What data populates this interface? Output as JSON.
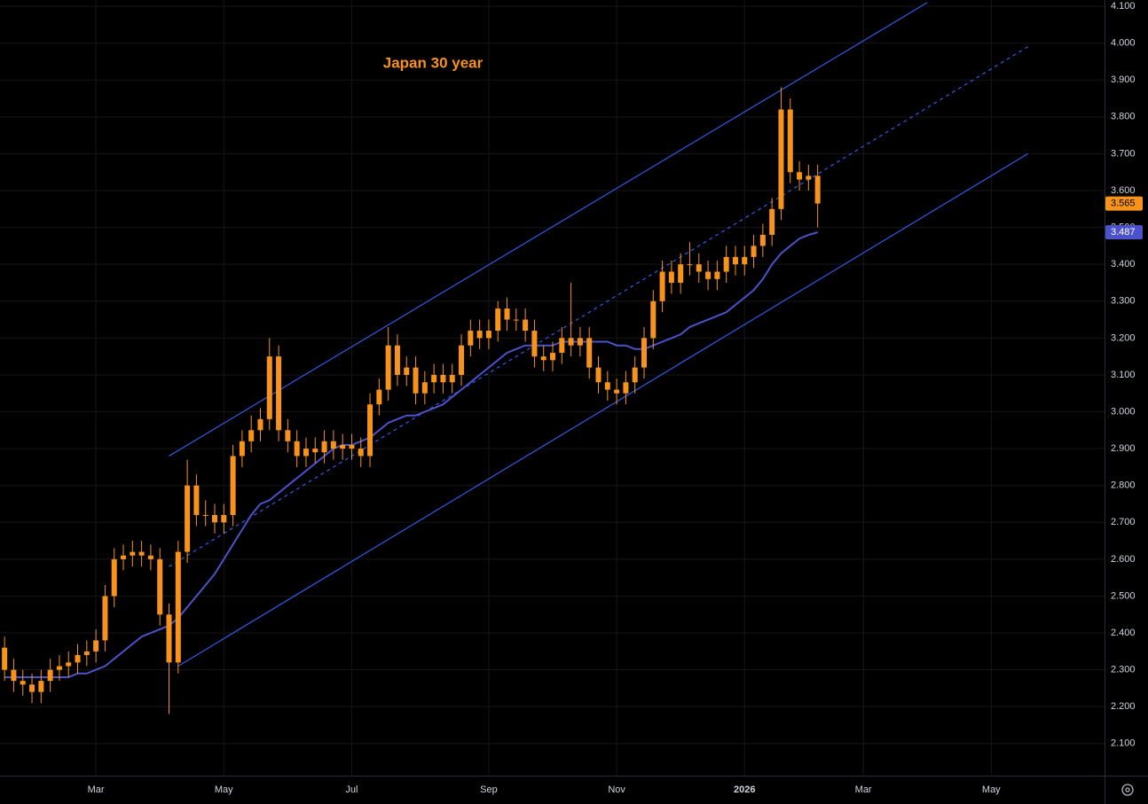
{
  "chart_data": {
    "type": "candlestick",
    "title": "Japan 30 year",
    "color": "#f7931a",
    "open": [
      2.36,
      2.3,
      2.27,
      2.26,
      2.24,
      2.27,
      2.3,
      2.31,
      2.32,
      2.34,
      2.35,
      2.38,
      2.5,
      2.6,
      2.61,
      2.62,
      2.61,
      2.6,
      2.45,
      2.32,
      2.62,
      2.8,
      2.72,
      2.72,
      2.7,
      2.72,
      2.88,
      2.92,
      2.95,
      2.98,
      3.15,
      2.95,
      2.92,
      2.88,
      2.9,
      2.89,
      2.92,
      2.9,
      2.91,
      2.9,
      2.88,
      3.02,
      3.06,
      3.18,
      3.1,
      3.12,
      3.05,
      3.08,
      3.1,
      3.08,
      3.1,
      3.18,
      3.22,
      3.2,
      3.22,
      3.28,
      3.25,
      3.25,
      3.22,
      3.15,
      3.14,
      3.16,
      3.2,
      3.18,
      3.2,
      3.12,
      3.08,
      3.06,
      3.05,
      3.08,
      3.12,
      3.2,
      3.3,
      3.38,
      3.35,
      3.4,
      3.4,
      3.38,
      3.36,
      3.38,
      3.42,
      3.4,
      3.42,
      3.45,
      3.48,
      3.55,
      3.82,
      3.65,
      3.63,
      3.64
    ],
    "high": [
      2.39,
      2.33,
      2.3,
      2.29,
      2.3,
      2.33,
      2.34,
      2.35,
      2.37,
      2.38,
      2.41,
      2.53,
      2.63,
      2.64,
      2.65,
      2.65,
      2.64,
      2.63,
      2.48,
      2.65,
      2.87,
      2.83,
      2.76,
      2.75,
      2.75,
      2.91,
      2.95,
      2.99,
      3.01,
      3.2,
      3.18,
      2.98,
      2.95,
      2.93,
      2.93,
      2.95,
      2.95,
      2.94,
      2.94,
      2.93,
      3.05,
      3.09,
      3.23,
      3.21,
      3.15,
      3.15,
      3.11,
      3.13,
      3.13,
      3.13,
      3.21,
      3.25,
      3.25,
      3.25,
      3.3,
      3.31,
      3.28,
      3.28,
      3.25,
      3.18,
      3.19,
      3.23,
      3.35,
      3.23,
      3.23,
      3.15,
      3.11,
      3.09,
      3.11,
      3.15,
      3.23,
      3.33,
      3.41,
      3.41,
      3.43,
      3.46,
      3.43,
      3.41,
      3.41,
      3.45,
      3.45,
      3.45,
      3.48,
      3.51,
      3.58,
      3.88,
      3.85,
      3.68,
      3.67,
      3.67
    ],
    "low": [
      2.27,
      2.24,
      2.23,
      2.21,
      2.21,
      2.24,
      2.27,
      2.28,
      2.29,
      2.31,
      2.32,
      2.35,
      2.47,
      2.57,
      2.58,
      2.58,
      2.57,
      2.42,
      2.18,
      2.29,
      2.59,
      2.69,
      2.69,
      2.67,
      2.67,
      2.69,
      2.85,
      2.89,
      2.92,
      2.95,
      2.92,
      2.89,
      2.85,
      2.85,
      2.86,
      2.86,
      2.87,
      2.87,
      2.87,
      2.85,
      2.85,
      2.99,
      3.03,
      3.07,
      3.07,
      3.02,
      3.02,
      3.05,
      3.05,
      3.05,
      3.07,
      3.15,
      3.17,
      3.17,
      3.19,
      3.22,
      3.22,
      3.19,
      3.12,
      3.11,
      3.11,
      3.13,
      3.15,
      3.15,
      3.09,
      3.05,
      3.03,
      3.02,
      3.02,
      3.05,
      3.09,
      3.17,
      3.27,
      3.32,
      3.32,
      3.37,
      3.35,
      3.33,
      3.33,
      3.35,
      3.37,
      3.37,
      3.39,
      3.42,
      3.45,
      3.52,
      3.62,
      3.6,
      3.6,
      3.5
    ],
    "close": [
      2.3,
      2.27,
      2.26,
      2.24,
      2.27,
      2.3,
      2.31,
      2.32,
      2.34,
      2.35,
      2.38,
      2.5,
      2.6,
      2.61,
      2.62,
      2.61,
      2.6,
      2.45,
      2.32,
      2.62,
      2.8,
      2.72,
      2.72,
      2.7,
      2.72,
      2.88,
      2.92,
      2.95,
      2.98,
      3.15,
      2.95,
      2.92,
      2.88,
      2.9,
      2.89,
      2.92,
      2.9,
      2.91,
      2.9,
      2.88,
      3.02,
      3.06,
      3.18,
      3.1,
      3.12,
      3.05,
      3.08,
      3.1,
      3.08,
      3.1,
      3.18,
      3.22,
      3.2,
      3.22,
      3.28,
      3.25,
      3.25,
      3.22,
      3.15,
      3.14,
      3.16,
      3.2,
      3.18,
      3.2,
      3.12,
      3.08,
      3.06,
      3.05,
      3.08,
      3.12,
      3.2,
      3.3,
      3.38,
      3.35,
      3.4,
      3.4,
      3.38,
      3.36,
      3.38,
      3.42,
      3.4,
      3.42,
      3.45,
      3.48,
      3.55,
      3.82,
      3.65,
      3.63,
      3.64,
      3.565
    ],
    "last_label": "3.565",
    "moving_average": {
      "color": "#4c52c9",
      "values": [
        2.28,
        2.28,
        2.28,
        2.28,
        2.28,
        2.28,
        2.28,
        2.28,
        2.29,
        2.29,
        2.3,
        2.31,
        2.33,
        2.35,
        2.37,
        2.39,
        2.4,
        2.41,
        2.42,
        2.44,
        2.47,
        2.5,
        2.53,
        2.56,
        2.6,
        2.64,
        2.68,
        2.72,
        2.75,
        2.76,
        2.78,
        2.8,
        2.82,
        2.84,
        2.86,
        2.88,
        2.9,
        2.91,
        2.91,
        2.92,
        2.93,
        2.95,
        2.97,
        2.98,
        2.99,
        2.99,
        3.0,
        3.01,
        3.02,
        3.04,
        3.06,
        3.08,
        3.1,
        3.12,
        3.14,
        3.16,
        3.17,
        3.18,
        3.18,
        3.18,
        3.18,
        3.19,
        3.19,
        3.19,
        3.19,
        3.19,
        3.19,
        3.18,
        3.18,
        3.17,
        3.17,
        3.18,
        3.19,
        3.2,
        3.21,
        3.23,
        3.24,
        3.25,
        3.26,
        3.27,
        3.29,
        3.31,
        3.33,
        3.36,
        3.4,
        3.43,
        3.45,
        3.47,
        3.48,
        3.487
      ],
      "last_label": "3.487"
    },
    "trendlines": [
      {
        "color": "#2f5bea",
        "dashed": false,
        "x": [
          18,
          101
        ],
        "values": [
          2.88,
          4.11
        ]
      },
      {
        "color": "#2f5bea",
        "dashed": true,
        "x": [
          18,
          112
        ],
        "values": [
          2.58,
          3.99
        ]
      },
      {
        "color": "#2f5bea",
        "dashed": false,
        "x": [
          19,
          112
        ],
        "values": [
          2.31,
          3.7
        ]
      }
    ],
    "xlim": [
      -0.5,
      120.4
    ],
    "xticks": [
      {
        "value": 10,
        "label": "Mar"
      },
      {
        "value": 24,
        "label": "May"
      },
      {
        "value": 38,
        "label": "Jul"
      },
      {
        "value": 53,
        "label": "Sep"
      },
      {
        "value": 67,
        "label": "Nov"
      },
      {
        "value": 81,
        "label": "2026"
      },
      {
        "value": 94,
        "label": "Mar"
      },
      {
        "value": 108,
        "label": "May"
      }
    ],
    "ylim": [
      2.013,
      4.117
    ],
    "yticks": [
      {
        "value": 2.1,
        "label": "2.100"
      },
      {
        "value": 2.2,
        "label": "2.200"
      },
      {
        "value": 2.3,
        "label": "2.300"
      },
      {
        "value": 2.4,
        "label": "2.400"
      },
      {
        "value": 2.5,
        "label": "2.500"
      },
      {
        "value": 2.6,
        "label": "2.600"
      },
      {
        "value": 2.7,
        "label": "2.700"
      },
      {
        "value": 2.8,
        "label": "2.800"
      },
      {
        "value": 2.9,
        "label": "2.900"
      },
      {
        "value": 3.0,
        "label": "3.000"
      },
      {
        "value": 3.1,
        "label": "3.100"
      },
      {
        "value": 3.2,
        "label": "3.200"
      },
      {
        "value": 3.3,
        "label": "3.300"
      },
      {
        "value": 3.4,
        "label": "3.400"
      },
      {
        "value": 3.5,
        "label": "3.500"
      },
      {
        "value": 3.6,
        "label": "3.600"
      },
      {
        "value": 3.7,
        "label": "3.700"
      },
      {
        "value": 3.8,
        "label": "3.800"
      },
      {
        "value": 3.9,
        "label": "3.900"
      },
      {
        "value": 4.0,
        "label": "4.000"
      },
      {
        "value": 4.1,
        "label": "4.100"
      }
    ],
    "grid": true
  }
}
